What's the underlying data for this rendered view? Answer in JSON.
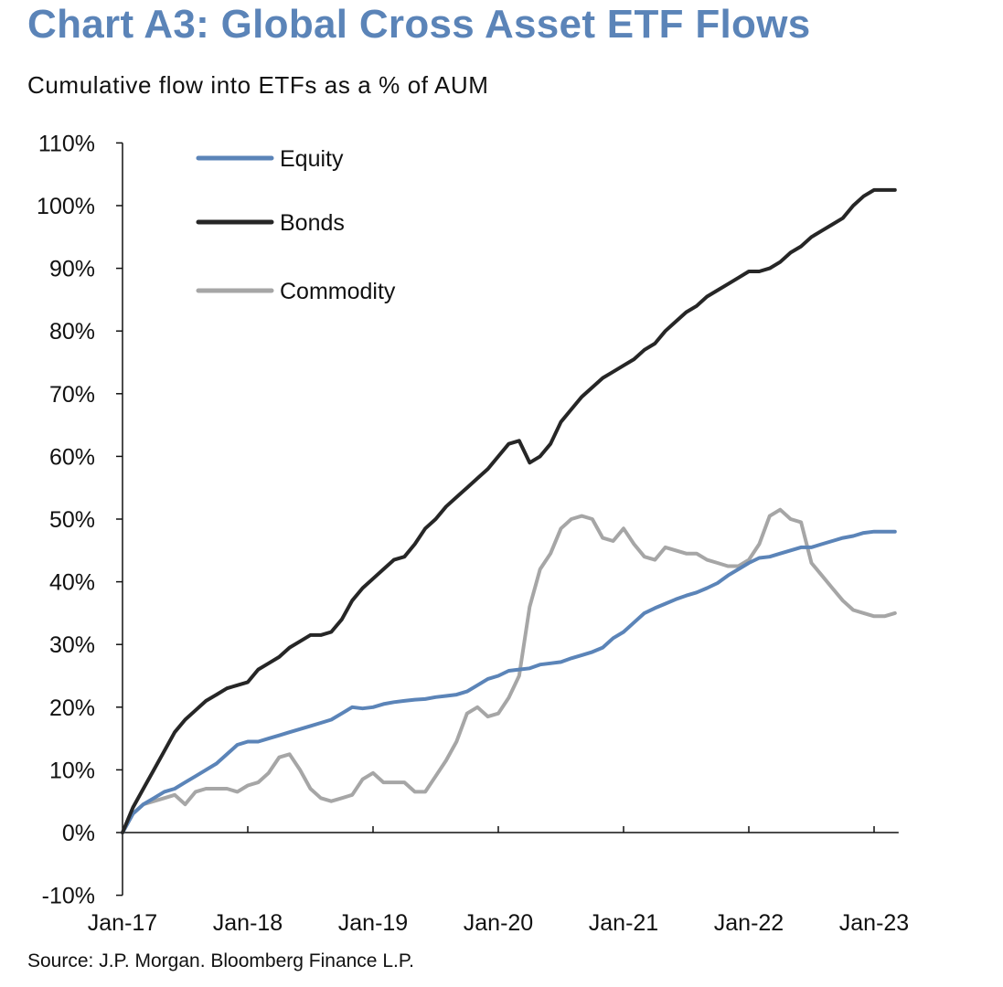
{
  "header": {
    "title": "Chart A3: Global Cross Asset ETF Flows",
    "subtitle": "Cumulative flow into ETFs as a % of AUM"
  },
  "footer": {
    "source": "Source: J.P. Morgan. Bloomberg Finance L.P."
  },
  "chart_data": {
    "type": "line",
    "title": "Chart A3: Global Cross Asset ETF Flows",
    "subtitle": "Cumulative flow into ETFs as a % of AUM",
    "xlabel": "",
    "ylabel": "",
    "x_range": [
      "2017-01",
      "2023-03"
    ],
    "ylim": [
      -10,
      110
    ],
    "y_ticks": [
      -10,
      0,
      10,
      20,
      30,
      40,
      50,
      60,
      70,
      80,
      90,
      100,
      110
    ],
    "y_tick_labels": [
      "-10%",
      "0%",
      "10%",
      "20%",
      "30%",
      "40%",
      "50%",
      "60%",
      "70%",
      "80%",
      "90%",
      "100%",
      "110%"
    ],
    "x_tick_labels": [
      "Jan-17",
      "Jan-18",
      "Jan-19",
      "Jan-20",
      "Jan-21",
      "Jan-22",
      "Jan-23"
    ],
    "x_tick_dates": [
      "2017-01",
      "2018-01",
      "2019-01",
      "2020-01",
      "2021-01",
      "2022-01",
      "2023-01"
    ],
    "grid": false,
    "legend_position": "top-left",
    "series": [
      {
        "name": "Equity",
        "color": "#5b84b8",
        "points": [
          [
            "2017-01",
            0
          ],
          [
            "2017-02",
            3
          ],
          [
            "2017-03",
            4.5
          ],
          [
            "2017-04",
            5.5
          ],
          [
            "2017-05",
            6.5
          ],
          [
            "2017-06",
            7
          ],
          [
            "2017-07",
            8
          ],
          [
            "2017-08",
            9
          ],
          [
            "2017-09",
            10
          ],
          [
            "2017-10",
            11
          ],
          [
            "2017-11",
            12.5
          ],
          [
            "2017-12",
            14
          ],
          [
            "2018-01",
            14.5
          ],
          [
            "2018-02",
            14.5
          ],
          [
            "2018-03",
            15
          ],
          [
            "2018-04",
            15.5
          ],
          [
            "2018-05",
            16
          ],
          [
            "2018-06",
            16.5
          ],
          [
            "2018-07",
            17
          ],
          [
            "2018-08",
            17.5
          ],
          [
            "2018-09",
            18
          ],
          [
            "2018-10",
            19
          ],
          [
            "2018-11",
            20
          ],
          [
            "2018-12",
            19.8
          ],
          [
            "2019-01",
            20
          ],
          [
            "2019-02",
            20.5
          ],
          [
            "2019-03",
            20.8
          ],
          [
            "2019-04",
            21
          ],
          [
            "2019-05",
            21.2
          ],
          [
            "2019-06",
            21.3
          ],
          [
            "2019-07",
            21.6
          ],
          [
            "2019-08",
            21.8
          ],
          [
            "2019-09",
            22
          ],
          [
            "2019-10",
            22.5
          ],
          [
            "2019-11",
            23.5
          ],
          [
            "2019-12",
            24.5
          ],
          [
            "2020-01",
            25
          ],
          [
            "2020-02",
            25.8
          ],
          [
            "2020-03",
            26
          ],
          [
            "2020-04",
            26.2
          ],
          [
            "2020-05",
            26.8
          ],
          [
            "2020-06",
            27
          ],
          [
            "2020-07",
            27.2
          ],
          [
            "2020-08",
            27.8
          ],
          [
            "2020-09",
            28.3
          ],
          [
            "2020-10",
            28.8
          ],
          [
            "2020-11",
            29.5
          ],
          [
            "2020-12",
            31
          ],
          [
            "2021-01",
            32
          ],
          [
            "2021-02",
            33.5
          ],
          [
            "2021-03",
            35
          ],
          [
            "2021-04",
            35.8
          ],
          [
            "2021-05",
            36.5
          ],
          [
            "2021-06",
            37.2
          ],
          [
            "2021-07",
            37.8
          ],
          [
            "2021-08",
            38.3
          ],
          [
            "2021-09",
            39
          ],
          [
            "2021-10",
            39.8
          ],
          [
            "2021-11",
            41
          ],
          [
            "2021-12",
            42
          ],
          [
            "2022-01",
            43
          ],
          [
            "2022-02",
            43.8
          ],
          [
            "2022-03",
            44
          ],
          [
            "2022-04",
            44.5
          ],
          [
            "2022-05",
            45
          ],
          [
            "2022-06",
            45.5
          ],
          [
            "2022-07",
            45.5
          ],
          [
            "2022-08",
            46
          ],
          [
            "2022-09",
            46.5
          ],
          [
            "2022-10",
            47
          ],
          [
            "2022-11",
            47.3
          ],
          [
            "2022-12",
            47.8
          ],
          [
            "2023-01",
            48
          ],
          [
            "2023-02",
            48
          ],
          [
            "2023-03",
            48
          ]
        ]
      },
      {
        "name": "Bonds",
        "color": "#262626",
        "points": [
          [
            "2017-01",
            0
          ],
          [
            "2017-02",
            4
          ],
          [
            "2017-03",
            7
          ],
          [
            "2017-04",
            10
          ],
          [
            "2017-05",
            13
          ],
          [
            "2017-06",
            16
          ],
          [
            "2017-07",
            18
          ],
          [
            "2017-08",
            19.5
          ],
          [
            "2017-09",
            21
          ],
          [
            "2017-10",
            22
          ],
          [
            "2017-11",
            23
          ],
          [
            "2017-12",
            23.5
          ],
          [
            "2018-01",
            24
          ],
          [
            "2018-02",
            26
          ],
          [
            "2018-03",
            27
          ],
          [
            "2018-04",
            28
          ],
          [
            "2018-05",
            29.5
          ],
          [
            "2018-06",
            30.5
          ],
          [
            "2018-07",
            31.5
          ],
          [
            "2018-08",
            31.5
          ],
          [
            "2018-09",
            32
          ],
          [
            "2018-10",
            34
          ],
          [
            "2018-11",
            37
          ],
          [
            "2018-12",
            39
          ],
          [
            "2019-01",
            40.5
          ],
          [
            "2019-02",
            42
          ],
          [
            "2019-03",
            43.5
          ],
          [
            "2019-04",
            44
          ],
          [
            "2019-05",
            46
          ],
          [
            "2019-06",
            48.5
          ],
          [
            "2019-07",
            50
          ],
          [
            "2019-08",
            52
          ],
          [
            "2019-09",
            53.5
          ],
          [
            "2019-10",
            55
          ],
          [
            "2019-11",
            56.5
          ],
          [
            "2019-12",
            58
          ],
          [
            "2020-01",
            60
          ],
          [
            "2020-02",
            62
          ],
          [
            "2020-03",
            62.5
          ],
          [
            "2020-04",
            59
          ],
          [
            "2020-05",
            60
          ],
          [
            "2020-06",
            62
          ],
          [
            "2020-07",
            65.5
          ],
          [
            "2020-08",
            67.5
          ],
          [
            "2020-09",
            69.5
          ],
          [
            "2020-10",
            71
          ],
          [
            "2020-11",
            72.5
          ],
          [
            "2020-12",
            73.5
          ],
          [
            "2021-01",
            74.5
          ],
          [
            "2021-02",
            75.5
          ],
          [
            "2021-03",
            77
          ],
          [
            "2021-04",
            78
          ],
          [
            "2021-05",
            80
          ],
          [
            "2021-06",
            81.5
          ],
          [
            "2021-07",
            83
          ],
          [
            "2021-08",
            84
          ],
          [
            "2021-09",
            85.5
          ],
          [
            "2021-10",
            86.5
          ],
          [
            "2021-11",
            87.5
          ],
          [
            "2021-12",
            88.5
          ],
          [
            "2022-01",
            89.5
          ],
          [
            "2022-02",
            89.5
          ],
          [
            "2022-03",
            90
          ],
          [
            "2022-04",
            91
          ],
          [
            "2022-05",
            92.5
          ],
          [
            "2022-06",
            93.5
          ],
          [
            "2022-07",
            95
          ],
          [
            "2022-08",
            96
          ],
          [
            "2022-09",
            97
          ],
          [
            "2022-10",
            98
          ],
          [
            "2022-11",
            100
          ],
          [
            "2022-12",
            101.5
          ],
          [
            "2023-01",
            102.5
          ],
          [
            "2023-02",
            102.5
          ],
          [
            "2023-03",
            102.5
          ]
        ]
      },
      {
        "name": "Commodity",
        "color": "#a6a6a6",
        "points": [
          [
            "2017-01",
            0
          ],
          [
            "2017-02",
            3
          ],
          [
            "2017-03",
            4.5
          ],
          [
            "2017-04",
            5
          ],
          [
            "2017-05",
            5.5
          ],
          [
            "2017-06",
            6
          ],
          [
            "2017-07",
            4.5
          ],
          [
            "2017-08",
            6.5
          ],
          [
            "2017-09",
            7
          ],
          [
            "2017-10",
            7
          ],
          [
            "2017-11",
            7
          ],
          [
            "2017-12",
            6.5
          ],
          [
            "2018-01",
            7.5
          ],
          [
            "2018-02",
            8
          ],
          [
            "2018-03",
            9.5
          ],
          [
            "2018-04",
            12
          ],
          [
            "2018-05",
            12.5
          ],
          [
            "2018-06",
            10
          ],
          [
            "2018-07",
            7
          ],
          [
            "2018-08",
            5.5
          ],
          [
            "2018-09",
            5
          ],
          [
            "2018-10",
            5.5
          ],
          [
            "2018-11",
            6
          ],
          [
            "2018-12",
            8.5
          ],
          [
            "2019-01",
            9.5
          ],
          [
            "2019-02",
            8
          ],
          [
            "2019-03",
            8
          ],
          [
            "2019-04",
            8
          ],
          [
            "2019-05",
            6.5
          ],
          [
            "2019-06",
            6.5
          ],
          [
            "2019-07",
            9
          ],
          [
            "2019-08",
            11.5
          ],
          [
            "2019-09",
            14.5
          ],
          [
            "2019-10",
            19
          ],
          [
            "2019-11",
            20
          ],
          [
            "2019-12",
            18.5
          ],
          [
            "2020-01",
            19
          ],
          [
            "2020-02",
            21.5
          ],
          [
            "2020-03",
            25
          ],
          [
            "2020-04",
            36
          ],
          [
            "2020-05",
            42
          ],
          [
            "2020-06",
            44.5
          ],
          [
            "2020-07",
            48.5
          ],
          [
            "2020-08",
            50
          ],
          [
            "2020-09",
            50.5
          ],
          [
            "2020-10",
            50
          ],
          [
            "2020-11",
            47
          ],
          [
            "2020-12",
            46.5
          ],
          [
            "2021-01",
            48.5
          ],
          [
            "2021-02",
            46
          ],
          [
            "2021-03",
            44
          ],
          [
            "2021-04",
            43.5
          ],
          [
            "2021-05",
            45.5
          ],
          [
            "2021-06",
            45
          ],
          [
            "2021-07",
            44.5
          ],
          [
            "2021-08",
            44.5
          ],
          [
            "2021-09",
            43.5
          ],
          [
            "2021-10",
            43
          ],
          [
            "2021-11",
            42.5
          ],
          [
            "2021-12",
            42.5
          ],
          [
            "2022-01",
            43.5
          ],
          [
            "2022-02",
            46
          ],
          [
            "2022-03",
            50.5
          ],
          [
            "2022-04",
            51.5
          ],
          [
            "2022-05",
            50
          ],
          [
            "2022-06",
            49.5
          ],
          [
            "2022-07",
            43
          ],
          [
            "2022-08",
            41
          ],
          [
            "2022-09",
            39
          ],
          [
            "2022-10",
            37
          ],
          [
            "2022-11",
            35.5
          ],
          [
            "2022-12",
            35
          ],
          [
            "2023-01",
            34.5
          ],
          [
            "2023-02",
            34.5
          ],
          [
            "2023-03",
            35
          ]
        ]
      }
    ]
  }
}
